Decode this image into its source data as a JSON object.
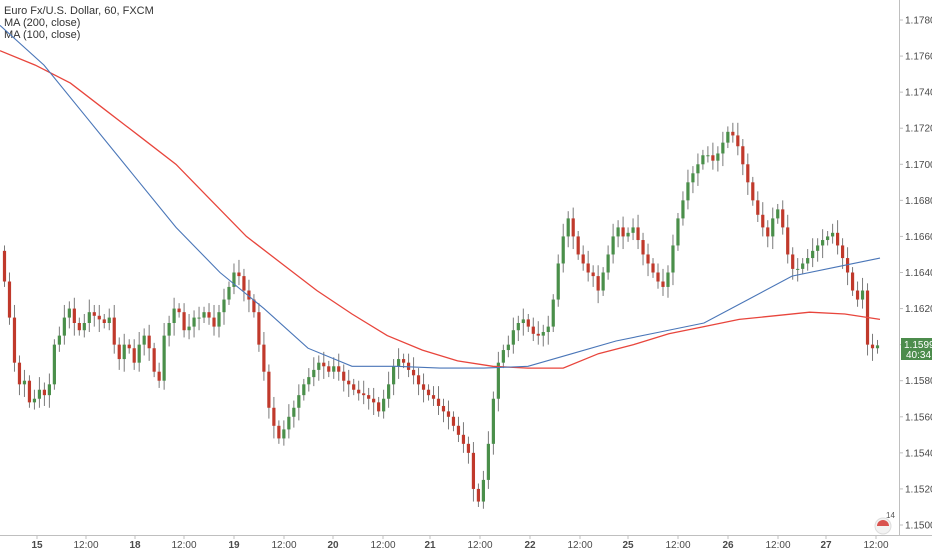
{
  "legend": {
    "title": "Euro Fx/U.S. Dollar, 60, FXCM",
    "ma200": "MA (200, close)",
    "ma100": "MA (100, close)"
  },
  "colors": {
    "up": "#4a8f4a",
    "down": "#c0392b",
    "ma200": "#e8453c",
    "ma100": "#4a76b8",
    "price_tag": "#4c8c4c",
    "axis": "#bfbfbf"
  },
  "price_tag": {
    "price": "1.15996",
    "countdown": "40:34"
  },
  "badge": {
    "count": "14"
  },
  "chart_data": {
    "type": "candlestick",
    "title": "Euro Fx/U.S. Dollar, 60, FXCM",
    "ylim": [
      1.15,
      1.179
    ],
    "y_ticks": [
      "1.17800",
      "1.17600",
      "1.17400",
      "1.17200",
      "1.17000",
      "1.16800",
      "1.16600",
      "1.16400",
      "1.16200",
      "1.16000",
      "1.15800",
      "1.15600",
      "1.15400",
      "1.15200",
      "1.15000"
    ],
    "x_ticks": [
      "15",
      "12:00",
      "18",
      "12:00",
      "19",
      "12:00",
      "20",
      "12:00",
      "21",
      "12:00",
      "22",
      "12:00",
      "25",
      "12:00",
      "26",
      "12:00",
      "27",
      "12:00"
    ],
    "bar_count": 176,
    "closes_approx": [
      1.1635,
      1.1615,
      1.159,
      1.1578,
      1.158,
      1.1568,
      1.157,
      1.1575,
      1.1572,
      1.1578,
      1.16,
      1.1605,
      1.1615,
      1.162,
      1.1612,
      1.1608,
      1.1612,
      1.1618,
      1.1616,
      1.1614,
      1.1612,
      1.1615,
      1.16,
      1.1592,
      1.16,
      1.1598,
      1.159,
      1.16,
      1.1605,
      1.1598,
      1.1585,
      1.158,
      1.1605,
      1.1612,
      1.162,
      1.1618,
      1.1608,
      1.161,
      1.1615,
      1.1615,
      1.1618,
      1.1615,
      1.161,
      1.1618,
      1.1625,
      1.1632,
      1.164,
      1.1638,
      1.163,
      1.1625,
      1.1618,
      1.16,
      1.1585,
      1.1565,
      1.1555,
      1.1548,
      1.1553,
      1.156,
      1.1565,
      1.1572,
      1.1578,
      1.1582,
      1.1586,
      1.159,
      1.1588,
      1.1585,
      1.1588,
      1.1585,
      1.158,
      1.1578,
      1.1575,
      1.1573,
      1.1572,
      1.157,
      1.1568,
      1.1563,
      1.157,
      1.1578,
      1.1588,
      1.1592,
      1.159,
      1.1586,
      1.1583,
      1.1578,
      1.1575,
      1.1572,
      1.157,
      1.1566,
      1.1563,
      1.156,
      1.1555,
      1.155,
      1.1545,
      1.154,
      1.152,
      1.1513,
      1.1525,
      1.1545,
      1.157,
      1.159,
      1.1597,
      1.16,
      1.1608,
      1.1612,
      1.1614,
      1.161,
      1.1606,
      1.1605,
      1.1607,
      1.161,
      1.1625,
      1.1645,
      1.166,
      1.167,
      1.166,
      1.165,
      1.1645,
      1.164,
      1.1638,
      1.163,
      1.164,
      1.165,
      1.166,
      1.1665,
      1.166,
      1.1662,
      1.1665,
      1.1658,
      1.165,
      1.1645,
      1.164,
      1.1635,
      1.1632,
      1.164,
      1.1655,
      1.167,
      1.168,
      1.169,
      1.1695,
      1.17,
      1.1705,
      1.1705,
      1.1702,
      1.1706,
      1.1712,
      1.1718,
      1.1716,
      1.171,
      1.17,
      1.169,
      1.168,
      1.1672,
      1.1665,
      1.166,
      1.167,
      1.1675,
      1.1665,
      1.165,
      1.1642,
      1.1642,
      1.1645,
      1.1648,
      1.1652,
      1.1655,
      1.1658,
      1.166,
      1.1662,
      1.1655,
      1.1648,
      1.164,
      1.163,
      1.1625,
      1.163,
      1.16,
      1.1598,
      1.15996
    ],
    "series": [
      {
        "name": "MA (200, close)",
        "values": [
          1.1763,
          1.1755,
          1.1745,
          1.173,
          1.1715,
          1.17,
          1.168,
          1.166,
          1.1645,
          1.163,
          1.1617,
          1.1605,
          1.1597,
          1.1591,
          1.1588,
          1.1587,
          1.1587,
          1.1595,
          1.16,
          1.1606,
          1.161,
          1.1614,
          1.1616,
          1.1618,
          1.1617,
          1.1614
        ]
      },
      {
        "name": "MA (100, close)",
        "values": [
          1.1777,
          1.1755,
          1.1725,
          1.1695,
          1.1665,
          1.164,
          1.162,
          1.1598,
          1.1588,
          1.1588,
          1.1587,
          1.1587,
          1.1588,
          1.1595,
          1.1602,
          1.1607,
          1.1612,
          1.1625,
          1.1638,
          1.1643,
          1.1648
        ]
      }
    ]
  }
}
